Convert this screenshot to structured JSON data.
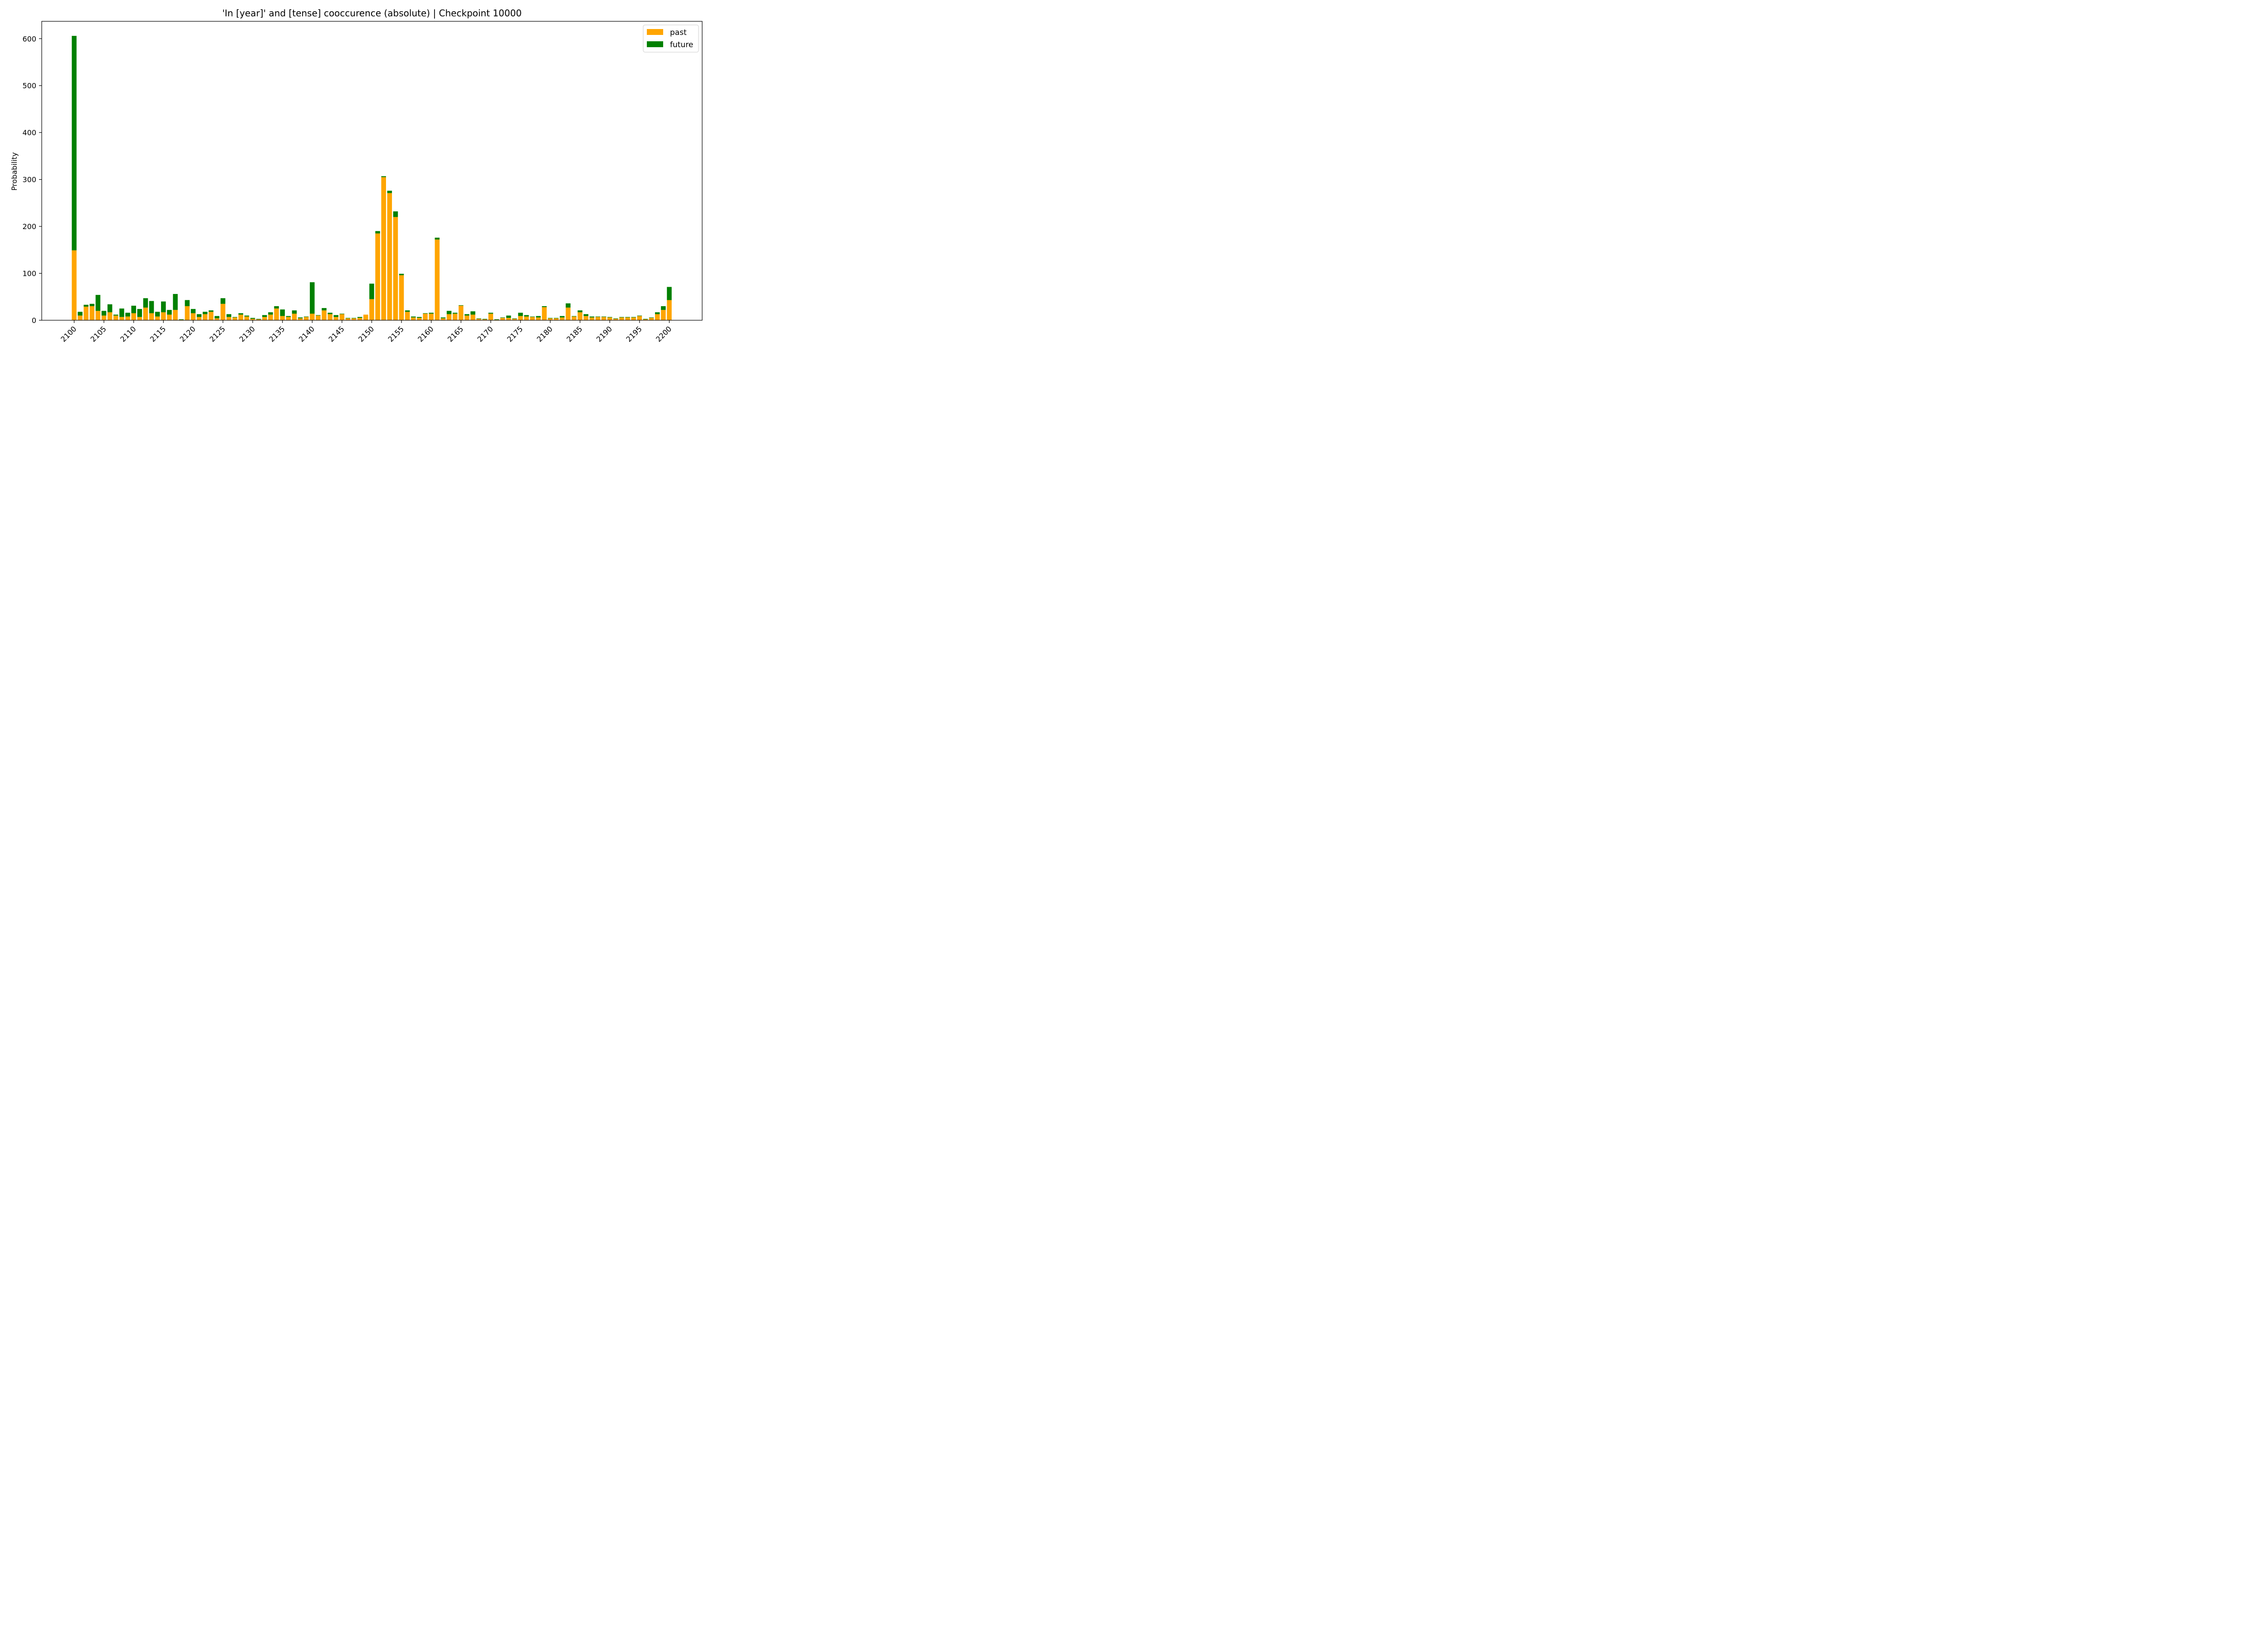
{
  "chart_data": {
    "type": "bar",
    "stacked": true,
    "title": "'In [year]' and [tense] cooccurence (absolute) | Checkpoint 10000",
    "xlabel": "",
    "ylabel": "Probability",
    "ylim": [
      0,
      637
    ],
    "yticks": [
      0,
      100,
      200,
      300,
      400,
      500,
      600
    ],
    "x_start": 2100,
    "x_end": 2200,
    "xticks": [
      2100,
      2105,
      2110,
      2115,
      2120,
      2125,
      2130,
      2135,
      2140,
      2145,
      2150,
      2155,
      2160,
      2165,
      2170,
      2175,
      2180,
      2185,
      2190,
      2195,
      2200
    ],
    "legend_position": "top-right",
    "grid": false,
    "series": [
      {
        "name": "past",
        "color": "#ffa500",
        "values": [
          149,
          10,
          29,
          30,
          20,
          10,
          17,
          10,
          7,
          8,
          15,
          7,
          27,
          15,
          8,
          17,
          12,
          22,
          1,
          30,
          15,
          7,
          13,
          18,
          4,
          35,
          7,
          6,
          12,
          8,
          3,
          2,
          7,
          12,
          25,
          9,
          7,
          14,
          4,
          7,
          14,
          10,
          21,
          13,
          7,
          13,
          4,
          4,
          5,
          12,
          45,
          185,
          305,
          271,
          220,
          96,
          18,
          6,
          5,
          14,
          14,
          172,
          4,
          13,
          14,
          31,
          10,
          12,
          3,
          2,
          14,
          1,
          5,
          5,
          3,
          9,
          8,
          7,
          6,
          28,
          4,
          4,
          6,
          27,
          8,
          17,
          9,
          6,
          7,
          7,
          6,
          3,
          6,
          6,
          6,
          9,
          2,
          5,
          13,
          22,
          43
        ]
      },
      {
        "name": "future",
        "color": "#008000",
        "values": [
          457,
          8,
          4,
          5,
          34,
          10,
          17,
          2,
          18,
          8,
          16,
          17,
          20,
          26,
          10,
          23,
          10,
          34,
          1,
          13,
          9,
          6,
          5,
          3,
          5,
          12,
          6,
          1,
          3,
          2,
          2,
          1,
          4,
          5,
          5,
          14,
          2,
          7,
          2,
          1,
          67,
          1,
          5,
          3,
          4,
          1,
          1,
          1,
          2,
          0,
          33,
          5,
          2,
          5,
          12,
          3,
          3,
          2,
          2,
          1,
          2,
          4,
          2,
          7,
          2,
          1,
          3,
          7,
          1,
          1,
          2,
          1,
          1,
          5,
          1,
          7,
          3,
          1,
          3,
          2,
          1,
          1,
          3,
          9,
          1,
          4,
          4,
          2,
          1,
          1,
          1,
          1,
          1,
          1,
          1,
          1,
          1,
          1,
          4,
          8,
          28
        ]
      }
    ]
  }
}
